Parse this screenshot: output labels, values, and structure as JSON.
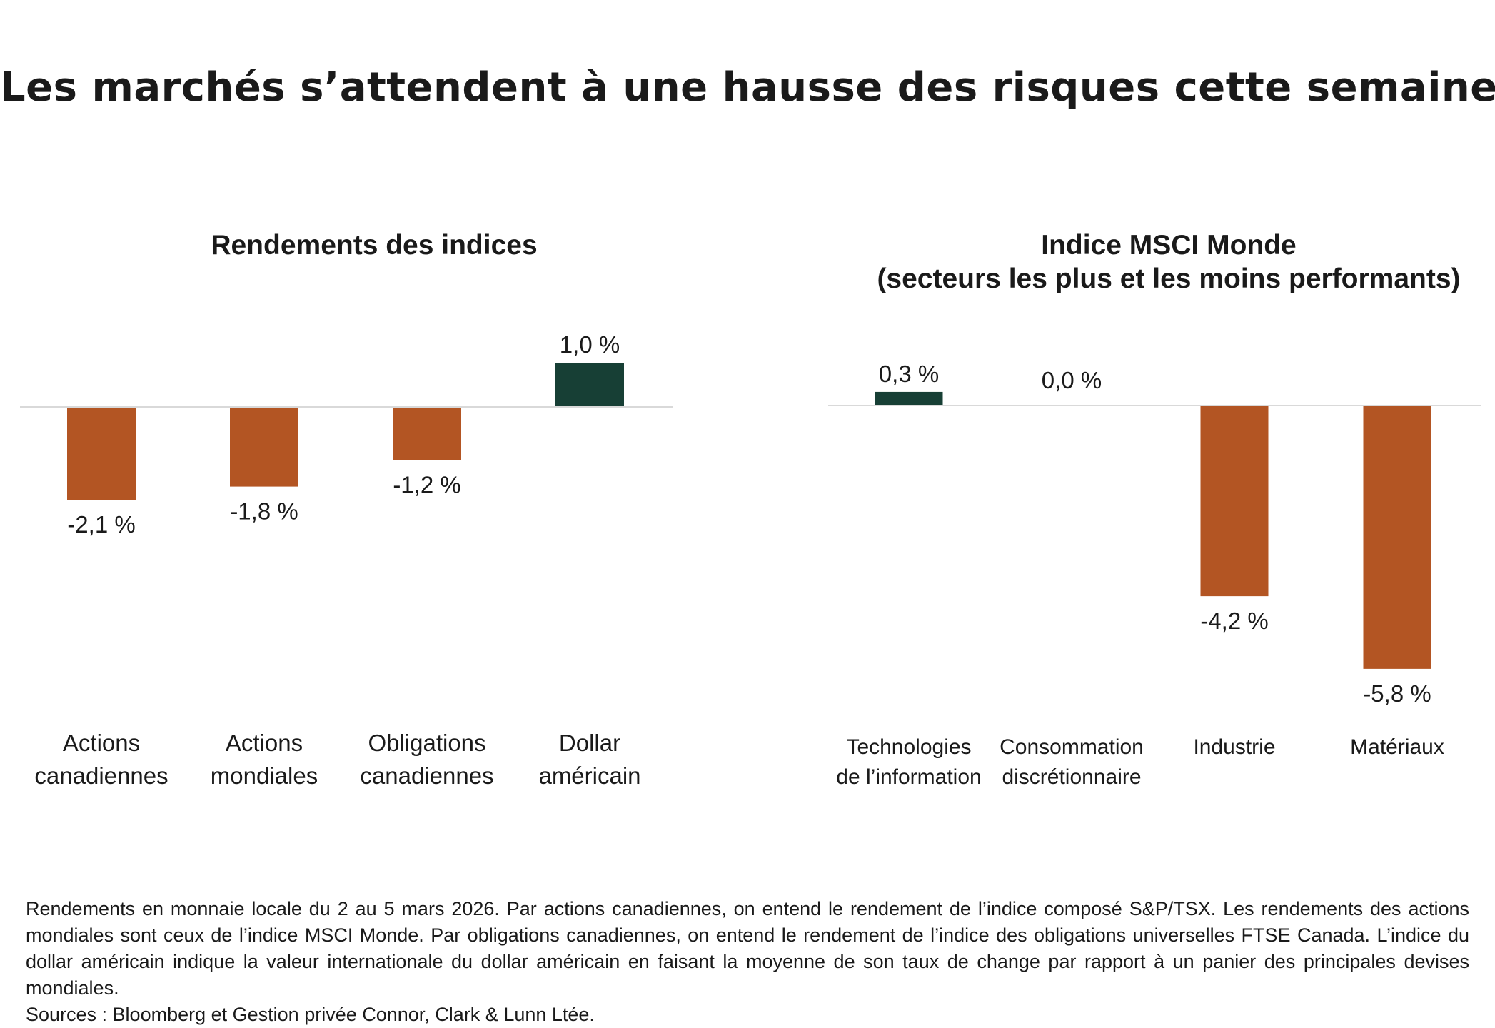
{
  "title": "Les marchés s’attendent à une hausse des risques cette semaine",
  "colors": {
    "negative": "#b35523",
    "positive": "#173f35",
    "baseline": "#d9d9d9",
    "text": "#1a1a1a"
  },
  "chart_data": [
    {
      "type": "bar",
      "title": "Rendements des indices",
      "categories": [
        [
          "Actions",
          "canadiennes"
        ],
        [
          "Actions",
          "mondiales"
        ],
        [
          "Obligations",
          "canadiennes"
        ],
        [
          "Dollar",
          "américain"
        ]
      ],
      "values": [
        -2.1,
        -1.8,
        -1.2,
        1.0
      ],
      "value_labels": [
        "-2,1 %",
        "-1,8 %",
        "-1,2 %",
        "1,0 %"
      ],
      "unit": "%",
      "grid": false,
      "legend": "none"
    },
    {
      "type": "bar",
      "title": [
        "Indice MSCI Monde",
        "(secteurs les plus et les moins performants)"
      ],
      "categories": [
        [
          "Technologies",
          "de l’information"
        ],
        [
          "Consommation",
          "discrétionnaire"
        ],
        [
          "Industrie"
        ],
        [
          "Matériaux"
        ]
      ],
      "values": [
        0.3,
        0.0,
        -4.2,
        -5.8
      ],
      "value_labels": [
        "0,3 %",
        "0,0 %",
        "-4,2 %",
        "-5,8 %"
      ],
      "unit": "%",
      "grid": false,
      "legend": "none"
    }
  ],
  "footnote": {
    "text": "Rendements en monnaie locale du 2 au 5 mars 2026. Par actions canadiennes, on entend le rendement de l’indice composé S&P/TSX. Les rendements des actions mondiales sont ceux de l’indice MSCI Monde. Par obligations canadiennes, on entend le rendement de l’indice des obligations universelles FTSE Canada. L’indice du dollar américain indique la valeur internationale du dollar américain en faisant la moyenne de son taux de change par rapport à un panier des principales devises mondiales.",
    "sources": "Sources : Bloomberg et Gestion privée Connor, Clark & Lunn Ltée."
  }
}
